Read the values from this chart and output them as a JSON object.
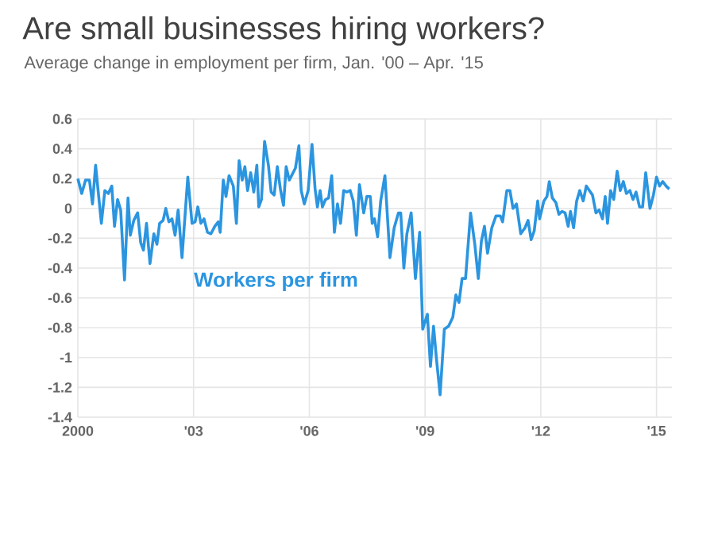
{
  "chart_data": {
    "type": "line",
    "title": "Are small businesses hiring workers?",
    "subtitle": "Average change in employment per firm, Jan. '00 – Apr. '15",
    "xlim": [
      2000,
      2015.4
    ],
    "xticks": [
      2000,
      {
        "value": 2003,
        "label": "'03"
      },
      {
        "value": 2006,
        "label": "'06"
      },
      {
        "value": 2009,
        "label": "'09"
      },
      {
        "value": 2012,
        "label": "'12"
      },
      {
        "value": 2015,
        "label": "'15"
      }
    ],
    "ylim": [
      -1.4,
      0.6
    ],
    "yticks": [
      -1.4,
      -1.2,
      -1,
      -0.8,
      -0.6,
      -0.4,
      -0.2,
      0,
      0.2,
      0.4,
      0.6
    ],
    "grid": true,
    "legend": false,
    "marker": "none",
    "line_style": "solid",
    "series": [
      {
        "name": "Workers per firm",
        "color": "#2b95e0",
        "x": [
          2000.0,
          2000.1,
          2000.2,
          2000.3,
          2000.38,
          2000.46,
          2000.61,
          2000.7,
          2000.79,
          2000.88,
          2000.95,
          2001.03,
          2001.11,
          2001.21,
          2001.3,
          2001.36,
          2001.45,
          2001.55,
          2001.63,
          2001.7,
          2001.78,
          2001.87,
          2001.97,
          2002.05,
          2002.12,
          2002.21,
          2002.28,
          2002.36,
          2002.44,
          2002.52,
          2002.6,
          2002.7,
          2002.85,
          2002.96,
          2003.04,
          2003.11,
          2003.19,
          2003.27,
          2003.36,
          2003.45,
          2003.55,
          2003.64,
          2003.69,
          2003.77,
          2003.84,
          2003.92,
          2004.03,
          2004.11,
          2004.18,
          2004.26,
          2004.33,
          2004.4,
          2004.48,
          2004.56,
          2004.64,
          2004.69,
          2004.76,
          2004.84,
          2004.94,
          2005.01,
          2005.09,
          2005.17,
          2005.25,
          2005.33,
          2005.4,
          2005.48,
          2005.56,
          2005.64,
          2005.73,
          2005.79,
          2005.87,
          2005.97,
          2006.07,
          2006.15,
          2006.21,
          2006.28,
          2006.34,
          2006.42,
          2006.5,
          2006.58,
          2006.65,
          2006.73,
          2006.81,
          2006.89,
          2006.97,
          2007.06,
          2007.14,
          2007.22,
          2007.3,
          2007.41,
          2007.49,
          2007.58,
          2007.63,
          2007.69,
          2007.77,
          2007.85,
          2007.96,
          2008.09,
          2008.2,
          2008.31,
          2008.37,
          2008.45,
          2008.53,
          2008.64,
          2008.75,
          2008.86,
          2008.94,
          2009.06,
          2009.14,
          2009.22,
          2009.3,
          2009.39,
          2009.5,
          2009.61,
          2009.72,
          2009.8,
          2009.88,
          2009.96,
          2010.05,
          2010.18,
          2010.29,
          2010.38,
          2010.46,
          2010.54,
          2010.62,
          2010.73,
          2010.84,
          2010.95,
          2011.01,
          2011.12,
          2011.2,
          2011.28,
          2011.37,
          2011.48,
          2011.59,
          2011.67,
          2011.75,
          2011.83,
          2011.92,
          2011.97,
          2012.08,
          2012.16,
          2012.22,
          2012.3,
          2012.39,
          2012.47,
          2012.55,
          2012.63,
          2012.71,
          2012.77,
          2012.85,
          2012.93,
          2013.01,
          2013.1,
          2013.18,
          2013.26,
          2013.34,
          2013.43,
          2013.51,
          2013.6,
          2013.67,
          2013.73,
          2013.81,
          2013.89,
          2013.98,
          2014.06,
          2014.14,
          2014.22,
          2014.31,
          2014.39,
          2014.47,
          2014.56,
          2014.64,
          2014.72,
          2014.83,
          2014.92,
          2015.0,
          2015.08,
          2015.16,
          2015.25,
          2015.33
        ],
        "values": [
          0.2,
          0.1,
          0.19,
          0.19,
          0.03,
          0.29,
          -0.1,
          0.12,
          0.1,
          0.15,
          -0.12,
          0.06,
          -0.01,
          -0.48,
          0.07,
          -0.18,
          -0.08,
          -0.03,
          -0.23,
          -0.28,
          -0.1,
          -0.37,
          -0.17,
          -0.24,
          -0.1,
          -0.08,
          0.0,
          -0.09,
          -0.07,
          -0.18,
          -0.01,
          -0.33,
          0.21,
          -0.1,
          -0.09,
          0.01,
          -0.1,
          -0.07,
          -0.16,
          -0.17,
          -0.12,
          -0.09,
          -0.16,
          0.19,
          0.08,
          0.22,
          0.15,
          -0.1,
          0.32,
          0.19,
          0.28,
          0.12,
          0.24,
          0.11,
          0.29,
          0.01,
          0.06,
          0.45,
          0.29,
          0.11,
          0.09,
          0.28,
          0.13,
          0.02,
          0.28,
          0.19,
          0.23,
          0.27,
          0.42,
          0.12,
          0.03,
          0.12,
          0.43,
          0.13,
          0.01,
          0.12,
          0.01,
          0.06,
          0.07,
          0.22,
          -0.16,
          0.03,
          -0.1,
          0.12,
          0.11,
          0.12,
          0.05,
          -0.18,
          0.16,
          -0.03,
          0.08,
          0.08,
          -0.1,
          -0.07,
          -0.19,
          0.05,
          0.22,
          -0.33,
          -0.13,
          -0.03,
          -0.03,
          -0.4,
          -0.17,
          -0.03,
          -0.47,
          -0.16,
          -0.81,
          -0.71,
          -1.06,
          -0.79,
          -1.02,
          -1.25,
          -0.81,
          -0.79,
          -0.73,
          -0.58,
          -0.63,
          -0.47,
          -0.47,
          -0.03,
          -0.24,
          -0.47,
          -0.22,
          -0.12,
          -0.3,
          -0.13,
          -0.05,
          -0.05,
          -0.09,
          0.12,
          0.12,
          0.0,
          0.03,
          -0.17,
          -0.13,
          -0.08,
          -0.21,
          -0.15,
          0.05,
          -0.07,
          0.05,
          0.08,
          0.18,
          0.07,
          0.04,
          -0.04,
          -0.02,
          -0.03,
          -0.12,
          -0.02,
          -0.13,
          0.05,
          0.12,
          0.05,
          0.15,
          0.12,
          0.09,
          -0.03,
          -0.01,
          -0.07,
          0.08,
          -0.1,
          0.12,
          0.06,
          0.25,
          0.12,
          0.18,
          0.1,
          0.12,
          0.06,
          0.11,
          0.01,
          0.01,
          0.24,
          0.0,
          0.09,
          0.21,
          0.15,
          0.18,
          0.15,
          0.13
        ]
      }
    ]
  }
}
